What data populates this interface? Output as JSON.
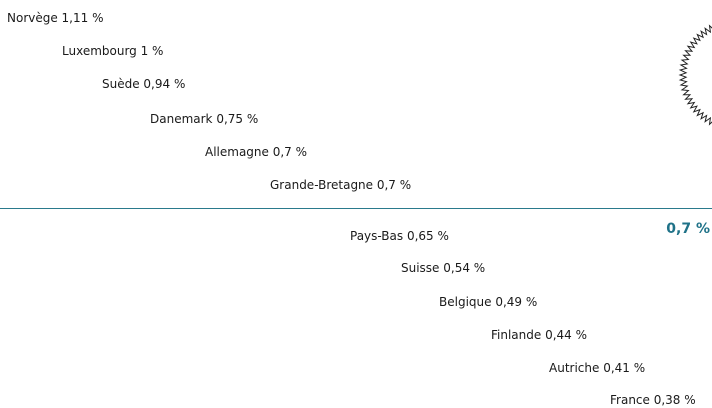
{
  "items": [
    "Norvège 1,11 %",
    "Luxembourg 1 %",
    "Suède 0,94 %",
    "Danemark 0,75 %",
    "Allemagne 0,7 %",
    "Grande-Bretagne 0,7 %",
    "Pays-Bas 0,65 %",
    "Suisse 0,54 %",
    "Belgique 0,49 %",
    "Finlande 0,44 %",
    "Autriche 0,41 %",
    "France 0,38 %"
  ],
  "threshold": "0,7 %"
}
